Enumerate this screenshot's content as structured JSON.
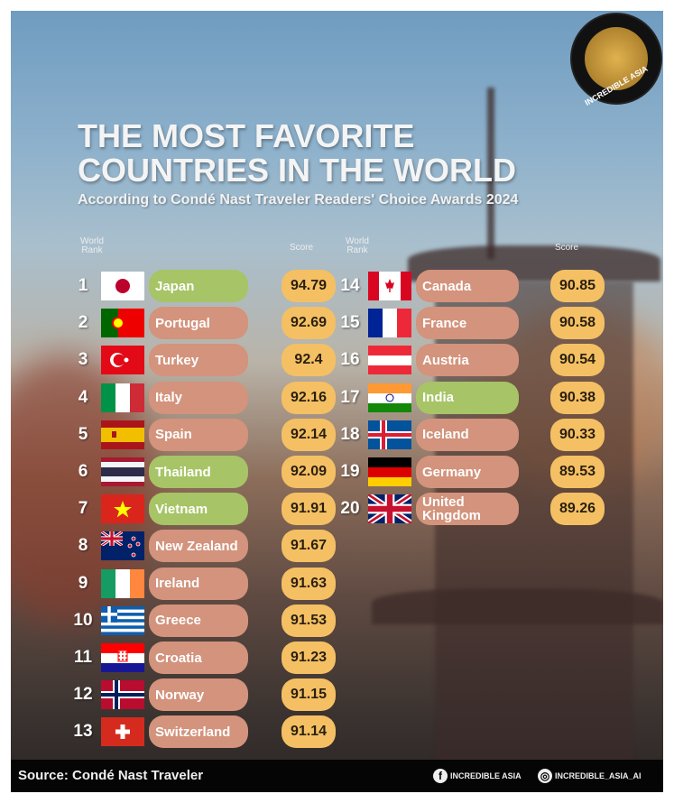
{
  "logo": {
    "text": "INCREDIBLE ASIA"
  },
  "title": "THE MOST FAVORITE\nCOUNTRIES IN THE WORLD",
  "subtitle": "According to Condé Nast Traveler Readers' Choice Awards 2024",
  "headers": {
    "rank": "World Rank",
    "score": "Score"
  },
  "colors": {
    "highlight": "#a7c466",
    "default": "#d3937c",
    "score": "#f4c063"
  },
  "rankings": [
    {
      "rank": "1",
      "country": "Japan",
      "score": "94.79",
      "flag": "jp",
      "highlight": true
    },
    {
      "rank": "2",
      "country": "Portugal",
      "score": "92.69",
      "flag": "pt",
      "highlight": false
    },
    {
      "rank": "3",
      "country": "Turkey",
      "score": "92.4",
      "flag": "tr",
      "highlight": false
    },
    {
      "rank": "4",
      "country": "Italy",
      "score": "92.16",
      "flag": "it",
      "highlight": false
    },
    {
      "rank": "5",
      "country": "Spain",
      "score": "92.14",
      "flag": "es",
      "highlight": false
    },
    {
      "rank": "6",
      "country": "Thailand",
      "score": "92.09",
      "flag": "th",
      "highlight": true
    },
    {
      "rank": "7",
      "country": "Vietnam",
      "score": "91.91",
      "flag": "vn",
      "highlight": true
    },
    {
      "rank": "8",
      "country": "New Zealand",
      "score": "91.67",
      "flag": "nz",
      "highlight": false
    },
    {
      "rank": "9",
      "country": "Ireland",
      "score": "91.63",
      "flag": "ie",
      "highlight": false
    },
    {
      "rank": "10",
      "country": "Greece",
      "score": "91.53",
      "flag": "gr",
      "highlight": false
    },
    {
      "rank": "11",
      "country": "Croatia",
      "score": "91.23",
      "flag": "hr",
      "highlight": false
    },
    {
      "rank": "12",
      "country": "Norway",
      "score": "91.15",
      "flag": "no",
      "highlight": false
    },
    {
      "rank": "13",
      "country": "Switzerland",
      "score": "91.14",
      "flag": "ch",
      "highlight": false
    },
    {
      "rank": "14",
      "country": "Canada",
      "score": "90.85",
      "flag": "ca",
      "highlight": false
    },
    {
      "rank": "15",
      "country": "France",
      "score": "90.58",
      "flag": "fr",
      "highlight": false
    },
    {
      "rank": "16",
      "country": "Austria",
      "score": "90.54",
      "flag": "at",
      "highlight": false
    },
    {
      "rank": "17",
      "country": "India",
      "score": "90.38",
      "flag": "in",
      "highlight": true
    },
    {
      "rank": "18",
      "country": "Iceland",
      "score": "90.33",
      "flag": "is",
      "highlight": false
    },
    {
      "rank": "19",
      "country": "Germany",
      "score": "89.53",
      "flag": "de",
      "highlight": false
    },
    {
      "rank": "20",
      "country": "United Kingdom",
      "score": "89.26",
      "flag": "gb",
      "highlight": false
    }
  ],
  "footer": {
    "source": "Source: Condé Nast Traveler",
    "facebook": "INCREDIBLE ASIA",
    "instagram": "INCREDIBLE_ASIA_AI"
  }
}
